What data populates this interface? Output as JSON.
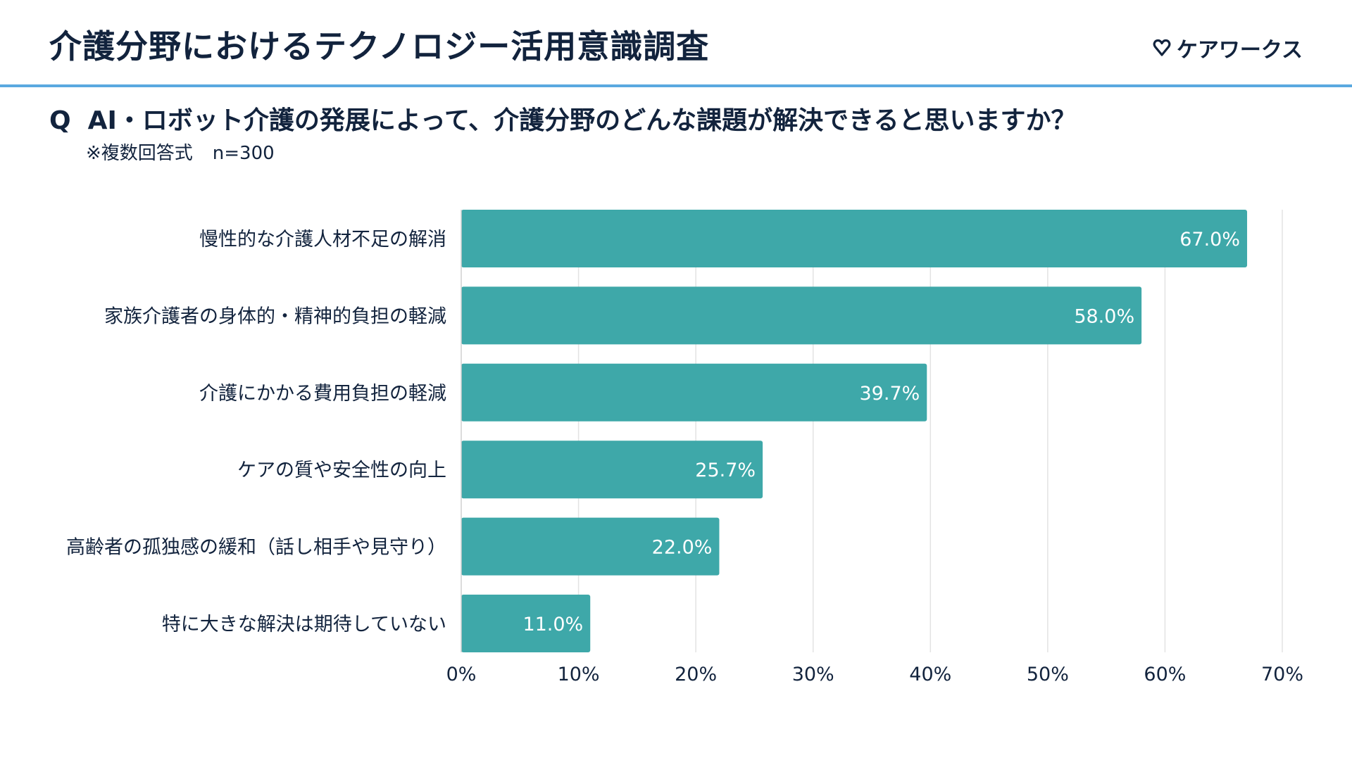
{
  "header": {
    "title": "介護分野におけるテクノロジー活用意識調査",
    "brand": "ケアワークス",
    "brand_icon": "heart-icon"
  },
  "question": {
    "prefix": "Q",
    "text": "AI・ロボット介護の発展によって、介護分野のどんな課題が解決できると思いますか？",
    "note": "※複数回答式",
    "sample": "n=300"
  },
  "colors": {
    "bar": "#3ea8a9",
    "accent_line": "#5aa9e0",
    "text": "#12233d",
    "grid": "#e3e3e3"
  },
  "chart_data": {
    "type": "bar",
    "orientation": "horizontal",
    "categories": [
      "慢性的な介護人材不足の解消",
      "家族介護者の身体的・精神的負担の軽減",
      "介護にかかる費用負担の軽減",
      "ケアの質や安全性の向上",
      "高齢者の孤独感の緩和（話し相手や見守り）",
      "特に大きな解決は期待していない"
    ],
    "values": [
      67.0,
      58.0,
      39.7,
      25.7,
      22.0,
      11.0
    ],
    "value_labels": [
      "67.0%",
      "58.0%",
      "39.7%",
      "25.7%",
      "22.0%",
      "11.0%"
    ],
    "xlim": [
      0,
      70
    ],
    "xticks": [
      0,
      10,
      20,
      30,
      40,
      50,
      60,
      70
    ],
    "xtick_labels": [
      "0%",
      "10%",
      "20%",
      "30%",
      "40%",
      "50%",
      "60%",
      "70%"
    ],
    "grid": true,
    "legend": "none"
  }
}
